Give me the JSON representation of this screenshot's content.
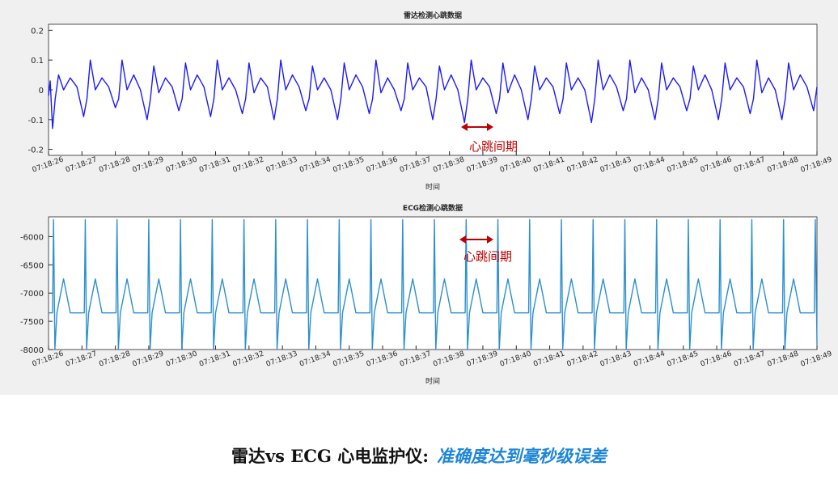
{
  "chart_data": [
    {
      "type": "line",
      "title": "雷达检测心跳数据",
      "x_label": "时间",
      "annotation": "心跳间期",
      "color": "#1a1aff",
      "xlim": [
        0,
        23
      ],
      "ylim": [
        -0.22,
        0.22
      ],
      "yticks": [
        -0.2,
        -0.1,
        0,
        0.1,
        0.2
      ],
      "grid": false,
      "xticks": [
        {
          "value": 0,
          "label": "07:18:26"
        },
        {
          "value": 1,
          "label": "07:18:27"
        },
        {
          "value": 2,
          "label": "07:18:28"
        },
        {
          "value": 3,
          "label": "07:18:29"
        },
        {
          "value": 4,
          "label": "07:18:30"
        },
        {
          "value": 5,
          "label": "07:18:31"
        },
        {
          "value": 6,
          "label": "07:18:32"
        },
        {
          "value": 7,
          "label": "07:18:33"
        },
        {
          "value": 8,
          "label": "07:18:34"
        },
        {
          "value": 9,
          "label": "07:18:35"
        },
        {
          "value": 10,
          "label": "07:18:36"
        },
        {
          "value": 11,
          "label": "07:18:37"
        },
        {
          "value": 12,
          "label": "07:18:38"
        },
        {
          "value": 13,
          "label": "07:18:39"
        },
        {
          "value": 14,
          "label": "07:18:40"
        },
        {
          "value": 15,
          "label": "07:18:41"
        },
        {
          "value": 16,
          "label": "07:18:42"
        },
        {
          "value": 17,
          "label": "07:18:43"
        },
        {
          "value": 18,
          "label": "07:18:44"
        },
        {
          "value": 19,
          "label": "07:18:45"
        },
        {
          "value": 20,
          "label": "07:18:46"
        },
        {
          "value": 21,
          "label": "07:18:47"
        },
        {
          "value": 22,
          "label": "07:18:48"
        },
        {
          "value": 23,
          "label": "07:18:49"
        }
      ],
      "x": [
        0,
        0.05,
        0.12,
        0.2,
        0.3,
        0.45,
        0.65,
        0.85,
        1.05,
        1.15,
        1.25,
        1.4,
        1.6,
        1.8,
        2.0,
        2.1,
        2.2,
        2.35,
        2.55,
        2.75,
        2.95,
        3.05,
        3.15,
        3.3,
        3.5,
        3.7,
        3.9,
        4.0,
        4.1,
        4.25,
        4.45,
        4.65,
        4.85,
        4.95,
        5.05,
        5.2,
        5.4,
        5.6,
        5.8,
        5.9,
        6.0,
        6.15,
        6.35,
        6.55,
        6.75,
        6.85,
        6.95,
        7.1,
        7.3,
        7.5,
        7.7,
        7.8,
        7.9,
        8.05,
        8.25,
        8.45,
        8.65,
        8.75,
        8.85,
        9.0,
        9.2,
        9.4,
        9.6,
        9.7,
        9.8,
        9.95,
        10.15,
        10.35,
        10.55,
        10.65,
        10.75,
        10.9,
        11.1,
        11.3,
        11.5,
        11.6,
        11.7,
        11.85,
        12.05,
        12.25,
        12.45,
        12.55,
        12.65,
        12.8,
        13.0,
        13.2,
        13.4,
        13.5,
        13.6,
        13.75,
        13.95,
        14.15,
        14.35,
        14.45,
        14.55,
        14.7,
        14.9,
        15.1,
        15.3,
        15.4,
        15.5,
        15.65,
        15.85,
        16.05,
        16.25,
        16.35,
        16.45,
        16.6,
        16.8,
        17.0,
        17.2,
        17.3,
        17.4,
        17.55,
        17.75,
        17.95,
        18.15,
        18.25,
        18.35,
        18.5,
        18.7,
        18.9,
        19.1,
        19.2,
        19.3,
        19.45,
        19.65,
        19.85,
        20.05,
        20.15,
        20.25,
        20.4,
        20.6,
        20.8,
        21.0,
        21.1,
        21.2,
        21.35,
        21.55,
        21.75,
        21.95,
        22.05,
        22.15,
        22.3,
        22.5,
        22.7,
        22.9,
        23.0
      ],
      "values": [
        -0.02,
        0.03,
        -0.13,
        -0.03,
        0.05,
        0.0,
        0.04,
        0.01,
        -0.09,
        -0.03,
        0.1,
        0.0,
        0.04,
        0.01,
        -0.06,
        -0.03,
        0.1,
        0.0,
        0.05,
        0.0,
        -0.1,
        -0.03,
        0.08,
        -0.01,
        0.04,
        0.01,
        -0.07,
        -0.03,
        0.09,
        0.0,
        0.05,
        0.01,
        -0.09,
        -0.03,
        0.1,
        0.0,
        0.04,
        0.0,
        -0.08,
        -0.03,
        0.09,
        -0.01,
        0.04,
        0.01,
        -0.1,
        -0.03,
        0.1,
        0.0,
        0.05,
        0.01,
        -0.07,
        -0.03,
        0.08,
        0.0,
        0.04,
        0.0,
        -0.1,
        -0.03,
        0.09,
        0.0,
        0.05,
        0.01,
        -0.08,
        -0.03,
        0.1,
        -0.01,
        0.04,
        0.0,
        -0.07,
        -0.03,
        0.09,
        0.0,
        0.04,
        0.01,
        -0.1,
        -0.03,
        0.08,
        0.0,
        0.05,
        0.0,
        -0.11,
        -0.03,
        0.1,
        0.0,
        0.04,
        0.01,
        -0.08,
        -0.03,
        0.09,
        -0.01,
        0.05,
        0.0,
        -0.1,
        -0.03,
        0.08,
        0.0,
        0.04,
        0.01,
        -0.08,
        -0.03,
        0.09,
        0.0,
        0.04,
        0.0,
        -0.11,
        -0.03,
        0.1,
        0.0,
        0.05,
        0.01,
        -0.07,
        -0.03,
        0.1,
        -0.01,
        0.04,
        0.0,
        -0.1,
        -0.03,
        0.09,
        0.0,
        0.04,
        0.01,
        -0.07,
        -0.03,
        0.08,
        0.0,
        0.05,
        0.0,
        -0.1,
        -0.03,
        0.09,
        0.0,
        0.04,
        0.01,
        -0.08,
        -0.03,
        0.1,
        -0.01,
        0.04,
        0.0,
        -0.1,
        -0.03,
        0.09,
        0.0,
        0.05,
        0.01,
        -0.07,
        0.01
      ]
    },
    {
      "type": "line",
      "title": "ECG检测心跳数据",
      "x_label": "时间",
      "annotation": "心跳间期",
      "color": "#2b8fd0",
      "xlim": [
        0,
        23
      ],
      "ylim": [
        -8000,
        -5650
      ],
      "yticks": [
        -8000,
        -7500,
        -7000,
        -6500,
        -6000
      ],
      "grid": false,
      "xticks": [
        {
          "value": 0,
          "label": "07:18:26"
        },
        {
          "value": 1,
          "label": "07:18:27"
        },
        {
          "value": 2,
          "label": "07:18:28"
        },
        {
          "value": 3,
          "label": "07:18:29"
        },
        {
          "value": 4,
          "label": "07:18:30"
        },
        {
          "value": 5,
          "label": "07:18:31"
        },
        {
          "value": 6,
          "label": "07:18:32"
        },
        {
          "value": 7,
          "label": "07:18:33"
        },
        {
          "value": 8,
          "label": "07:18:34"
        },
        {
          "value": 9,
          "label": "07:18:35"
        },
        {
          "value": 10,
          "label": "07:18:36"
        },
        {
          "value": 11,
          "label": "07:18:37"
        },
        {
          "value": 12,
          "label": "07:18:38"
        },
        {
          "value": 13,
          "label": "07:18:39"
        },
        {
          "value": 14,
          "label": "07:18:40"
        },
        {
          "value": 15,
          "label": "07:18:41"
        },
        {
          "value": 16,
          "label": "07:18:42"
        },
        {
          "value": 17,
          "label": "07:18:43"
        },
        {
          "value": 18,
          "label": "07:18:44"
        },
        {
          "value": 19,
          "label": "07:18:45"
        },
        {
          "value": 20,
          "label": "07:18:46"
        },
        {
          "value": 21,
          "label": "07:18:47"
        },
        {
          "value": 22,
          "label": "07:18:48"
        },
        {
          "value": 23,
          "label": "07:18:49"
        }
      ],
      "x": [
        0,
        0.12,
        0.15,
        0.19,
        0.25,
        0.45,
        0.65,
        1.07,
        1.1,
        1.14,
        1.2,
        1.4,
        1.6,
        2.02,
        2.05,
        2.09,
        2.15,
        2.35,
        2.55,
        2.97,
        3.0,
        3.04,
        3.1,
        3.3,
        3.5,
        3.92,
        3.95,
        3.99,
        4.05,
        4.25,
        4.45,
        4.87,
        4.9,
        4.94,
        5.0,
        5.2,
        5.4,
        5.82,
        5.85,
        5.89,
        5.95,
        6.15,
        6.35,
        6.77,
        6.8,
        6.84,
        6.9,
        7.1,
        7.3,
        7.72,
        7.75,
        7.79,
        7.85,
        8.05,
        8.25,
        8.67,
        8.7,
        8.74,
        8.8,
        9.0,
        9.2,
        9.62,
        9.65,
        9.69,
        9.75,
        9.95,
        10.15,
        10.57,
        10.6,
        10.64,
        10.7,
        10.9,
        11.1,
        11.52,
        11.55,
        11.59,
        11.65,
        11.85,
        12.05,
        12.47,
        12.5,
        12.54,
        12.6,
        12.8,
        13.0,
        13.42,
        13.45,
        13.49,
        13.55,
        13.75,
        13.95,
        14.37,
        14.4,
        14.44,
        14.5,
        14.7,
        14.9,
        15.32,
        15.35,
        15.39,
        15.45,
        15.65,
        15.85,
        16.27,
        16.3,
        16.34,
        16.4,
        16.6,
        16.8,
        17.22,
        17.25,
        17.29,
        17.35,
        17.55,
        17.75,
        18.17,
        18.2,
        18.24,
        18.3,
        18.5,
        18.7,
        19.12,
        19.15,
        19.19,
        19.25,
        19.45,
        19.65,
        20.07,
        20.1,
        20.14,
        20.2,
        20.4,
        20.6,
        21.02,
        21.05,
        21.09,
        21.15,
        21.35,
        21.55,
        21.97,
        22.0,
        22.04,
        22.1,
        22.3,
        22.5,
        22.92,
        22.95,
        23.0
      ],
      "values": [
        -7350,
        -7350,
        -5700,
        -8000,
        -7350,
        -6750,
        -7350,
        -7350,
        -5700,
        -8000,
        -7350,
        -6750,
        -7350,
        -7350,
        -5700,
        -8000,
        -7350,
        -6750,
        -7350,
        -7350,
        -5700,
        -8000,
        -7350,
        -6750,
        -7350,
        -7350,
        -5700,
        -8000,
        -7350,
        -6750,
        -7350,
        -7350,
        -5700,
        -8000,
        -7350,
        -6750,
        -7350,
        -7350,
        -5700,
        -8000,
        -7350,
        -6750,
        -7350,
        -7350,
        -5700,
        -8000,
        -7350,
        -6750,
        -7350,
        -7350,
        -5700,
        -8000,
        -7350,
        -6750,
        -7350,
        -7350,
        -5700,
        -8000,
        -7350,
        -6750,
        -7350,
        -7350,
        -5700,
        -8000,
        -7350,
        -6750,
        -7350,
        -7350,
        -5700,
        -8000,
        -7350,
        -6750,
        -7350,
        -7350,
        -5700,
        -8000,
        -7350,
        -6750,
        -7350,
        -7350,
        -5700,
        -8000,
        -7350,
        -6750,
        -7350,
        -7350,
        -5700,
        -8000,
        -7350,
        -6750,
        -7350,
        -7350,
        -5700,
        -8000,
        -7350,
        -6750,
        -7350,
        -7350,
        -5700,
        -8000,
        -7350,
        -6750,
        -7350,
        -7350,
        -5700,
        -8000,
        -7350,
        -6750,
        -7350,
        -7350,
        -5700,
        -8000,
        -7350,
        -6750,
        -7350,
        -7350,
        -5700,
        -8000,
        -7350,
        -6750,
        -7350,
        -7350,
        -5700,
        -8000,
        -7350,
        -6750,
        -7350,
        -7350,
        -5700,
        -8000,
        -7350,
        -6750,
        -7350,
        -7350,
        -5700,
        -8000,
        -7350,
        -6750,
        -7350,
        -7350,
        -5700,
        -8000,
        -7350,
        -6750,
        -7350,
        -7350,
        -5700,
        -7900
      ]
    }
  ],
  "caption": {
    "left": "雷达vs ECG 心电监护仪:",
    "right": "准确度达到毫秒级误差"
  }
}
